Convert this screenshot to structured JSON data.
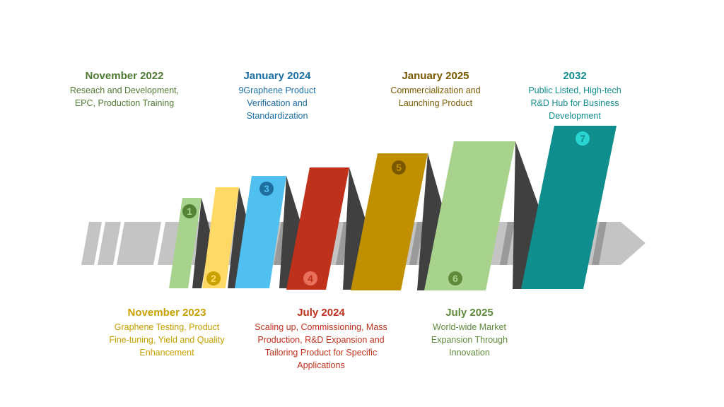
{
  "milestones": [
    {
      "step": "1",
      "date": "November 2022",
      "description": "Reseach and Development, EPC, Production Training",
      "color": "#a8d38e",
      "badge_color": "#548235"
    },
    {
      "step": "2",
      "date": "November 2023",
      "description": "Graphene Testing, Product Fine-tuning, Yield and Quality Enhancement",
      "color": "#ffd966",
      "badge_color": "#c9a100"
    },
    {
      "step": "3",
      "date": "January 2024",
      "description": "9Graphene Product Verification and Standardization",
      "color": "#4fc0ef",
      "badge_color": "#1e6fa0"
    },
    {
      "step": "4",
      "date": "July 2024",
      "description": "Scaling up, Commissioning, Mass Production, R&D Expansion and Tailoring Product for Specific Applications",
      "color": "#c0311c",
      "badge_color": "#e8705d"
    },
    {
      "step": "5",
      "date": "January 2025",
      "description": "Commercialization and Launching Product",
      "color": "#c09000",
      "badge_color": "#7a5800"
    },
    {
      "step": "6",
      "date": "July 2025",
      "description": "World-wide Market Expansion Through Innovation",
      "color": "#a8d38e",
      "badge_color": "#5e8a3a"
    },
    {
      "step": "7",
      "date": "2032",
      "description": "Public Listed, High-tech R&D Hub for Business Development",
      "color": "#108e8e",
      "badge_color": "#2ad4d0"
    }
  ],
  "colors": {
    "arrow": "#c4c4c4",
    "arrow_shadow": "#9a9a9a",
    "fold": "#404040"
  }
}
